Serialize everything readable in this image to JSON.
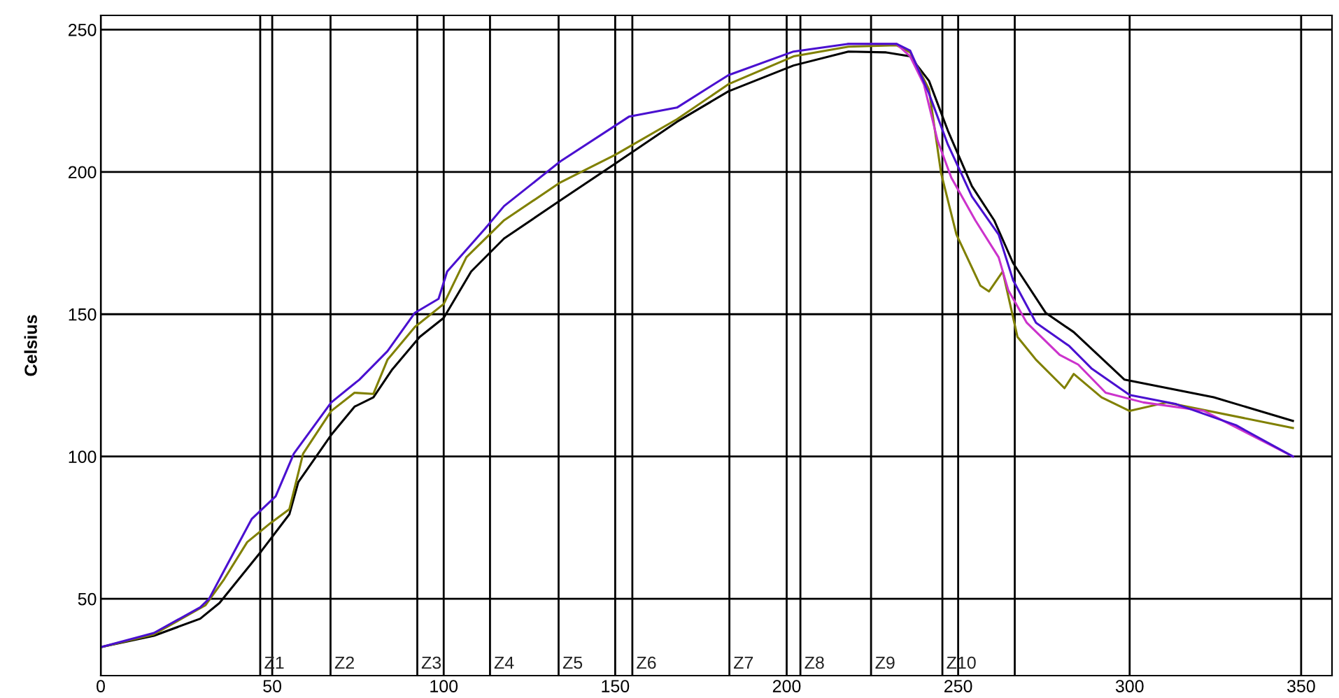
{
  "chart_data": {
    "type": "line",
    "ylabel": "Celsius",
    "xlim": [
      0,
      359
    ],
    "ylim": [
      23,
      255
    ],
    "xticks": [
      0,
      50,
      100,
      150,
      200,
      250,
      300,
      350
    ],
    "yticks": [
      50,
      100,
      150,
      200,
      250
    ],
    "grid": true,
    "line_style": "solid",
    "series": [
      {
        "color": "#000000",
        "x": [
          0,
          15.5,
          29,
          34.6,
          46.8,
          55,
          57.6,
          67.2,
          74,
          79.5,
          85,
          93,
          100,
          108,
          117.6,
          134,
          150,
          168,
          183,
          202,
          218,
          229,
          236,
          241.5,
          247,
          254,
          260.5,
          266,
          275.5,
          283.7,
          298.5,
          324.5,
          347.6
        ],
        "values": [
          33,
          37,
          43,
          48.5,
          66.7,
          79.7,
          91,
          107.6,
          117.5,
          120.8,
          130.6,
          142,
          148.7,
          165,
          176.6,
          190,
          202.9,
          217.6,
          228.3,
          237.4,
          242.3,
          242,
          240.6,
          232,
          214.5,
          195,
          183,
          168,
          150.5,
          143.7,
          127,
          120.8,
          112.5
        ]
      },
      {
        "color": "#808000",
        "x": [
          0,
          15.5,
          30.5,
          36,
          42.7,
          49.5,
          55,
          59,
          67.2,
          74,
          79.5,
          83.6,
          91.6,
          100,
          106.6,
          117.6,
          134,
          150,
          168,
          183,
          202,
          218,
          232,
          236,
          241.5,
          245,
          249.5,
          256.5,
          259,
          263,
          267.3,
          272.7,
          281,
          283.7,
          291.8,
          300,
          310.8,
          347.6
        ],
        "values": [
          33,
          37.5,
          47.7,
          56.9,
          69.9,
          76.6,
          81.5,
          101,
          116,
          122.4,
          122,
          134,
          145.5,
          153.6,
          170,
          183,
          196.3,
          206,
          218.5,
          230.8,
          240.6,
          244,
          244.5,
          242,
          229,
          199.7,
          178,
          160,
          158,
          165,
          142,
          134,
          124,
          129,
          120.8,
          116,
          119,
          110
        ]
      },
      {
        "color": "#cc33cc",
        "x": [
          218,
          232,
          236,
          240,
          244,
          248,
          255,
          261.8,
          264.6,
          270,
          279.6,
          285,
          293,
          304,
          321.7,
          347.6
        ],
        "values": [
          245,
          245,
          240.6,
          230.8,
          211,
          198,
          183,
          170,
          158.5,
          147,
          135.7,
          132.3,
          122.4,
          119,
          116,
          100
        ]
      },
      {
        "color": "#4a10d0",
        "x": [
          0,
          15.5,
          29,
          31.6,
          36,
          44,
          51,
          56.3,
          67.2,
          75.4,
          83.6,
          91.6,
          98.5,
          101,
          112,
          117.6,
          134,
          154,
          168,
          183,
          202,
          218,
          232,
          236,
          241.5,
          247,
          254,
          261.8,
          266,
          272.7,
          282.4,
          289,
          300,
          313.6,
          331,
          347.6
        ],
        "values": [
          33,
          38,
          47,
          50,
          60,
          78,
          86,
          101,
          119,
          127,
          137,
          150.5,
          155.4,
          165,
          180,
          188,
          203.7,
          219.4,
          222.6,
          234,
          242.3,
          245,
          245,
          242.6,
          227.5,
          209.6,
          191.4,
          178,
          162,
          147,
          138.8,
          130.8,
          121.6,
          118.4,
          111,
          100
        ]
      }
    ],
    "ref_lines": [
      {
        "axis": "x",
        "value": 46.5,
        "label": "Z1"
      },
      {
        "axis": "x",
        "value": 67,
        "label": "Z2"
      },
      {
        "axis": "x",
        "value": 92.3,
        "label": "Z3"
      },
      {
        "axis": "x",
        "value": 113.5,
        "label": "Z4"
      },
      {
        "axis": "x",
        "value": 133.5,
        "label": "Z5"
      },
      {
        "axis": "x",
        "value": 155,
        "label": "Z6"
      },
      {
        "axis": "x",
        "value": 183.3,
        "label": "Z7"
      },
      {
        "axis": "x",
        "value": 204,
        "label": "Z8"
      },
      {
        "axis": "x",
        "value": 224.6,
        "label": "Z9"
      },
      {
        "axis": "x",
        "value": 245.4,
        "label": "Z10"
      },
      {
        "axis": "x",
        "value": 266.5,
        "label": null
      }
    ]
  }
}
